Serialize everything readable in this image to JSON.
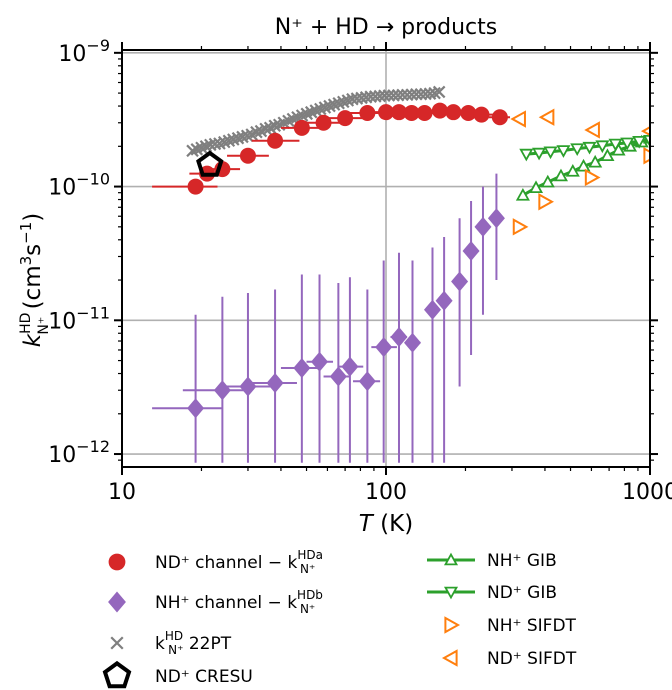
{
  "chart_data": {
    "type": "scatter",
    "title": "N⁺ + HD → products",
    "xlabel": "T (K)",
    "ylabel": "k_N⁺^HD (cm³s⁻¹)",
    "xscale": "log",
    "yscale": "log",
    "xlim": [
      10,
      1000
    ],
    "ylim": [
      8e-13,
      1.05e-09
    ],
    "x_ticks": [
      {
        "value": 10,
        "label": "10"
      },
      {
        "value": 100,
        "label": "100"
      },
      {
        "value": 1000,
        "label": "1000"
      }
    ],
    "y_ticks": [
      {
        "value": 1e-12,
        "mantissa": "10",
        "exponent": "−12"
      },
      {
        "value": 1e-11,
        "mantissa": "10",
        "exponent": "−11"
      },
      {
        "value": 1e-10,
        "mantissa": "10",
        "exponent": "−10"
      },
      {
        "value": 1e-09,
        "mantissa": "10",
        "exponent": "−9"
      }
    ],
    "grid": true,
    "legend_position": "below",
    "series": [
      {
        "id": "nd_channel",
        "name": "ND⁺ channel − k_N⁺^HDa",
        "legend_main": "ND⁺ channel  −  k",
        "legend_sup": "HDa",
        "legend_sub": "N⁺",
        "marker": "circle",
        "color": "#d62728",
        "x": [
          19,
          21,
          24,
          30,
          38,
          48,
          58,
          70,
          85,
          100,
          112,
          125,
          140,
          160,
          180,
          205,
          230,
          270
        ],
        "y": [
          1e-10,
          1.25e-10,
          1.35e-10,
          1.7e-10,
          2.2e-10,
          2.75e-10,
          3e-10,
          3.25e-10,
          3.55e-10,
          3.6e-10,
          3.6e-10,
          3.55e-10,
          3.55e-10,
          3.7e-10,
          3.6e-10,
          3.55e-10,
          3.45e-10,
          3.3e-10
        ],
        "x_err_low": [
          13,
          18,
          20,
          25,
          31,
          40,
          49,
          60,
          73,
          88,
          100,
          112,
          126,
          143,
          162,
          185,
          210,
          245
        ],
        "x_err_high": [
          23,
          25,
          28,
          36,
          47,
          57,
          68,
          82,
          98,
          114,
          125,
          140,
          157,
          178,
          200,
          225,
          255,
          295
        ]
      },
      {
        "id": "nh_channel",
        "name": "NH⁺ channel − k_N⁺^HDb",
        "legend_main": "NH⁺ channel  −  k",
        "legend_sup": "HDb",
        "legend_sub": "N⁺",
        "marker": "diamond",
        "color": "#9467bd",
        "x": [
          19,
          24,
          30,
          38,
          48,
          56,
          66,
          73,
          85,
          98,
          112,
          126,
          150,
          166,
          190,
          210,
          233,
          262
        ],
        "y": [
          2.2e-12,
          3e-12,
          3.2e-12,
          3.4e-12,
          4.4e-12,
          4.9e-12,
          3.8e-12,
          4.5e-12,
          3.5e-12,
          6.3e-12,
          7.5e-12,
          6.8e-12,
          1.2e-11,
          1.4e-11,
          1.95e-11,
          3.3e-11,
          5e-11,
          5.8e-11
        ],
        "x_err_low": [
          13,
          17,
          24,
          30,
          40,
          50,
          58,
          66,
          75,
          88,
          104,
          118,
          null,
          null,
          null,
          null,
          null,
          null
        ],
        "x_err_high": [
          24,
          30,
          37,
          46,
          56,
          63,
          73,
          82,
          95,
          110,
          120,
          135,
          null,
          null,
          null,
          null,
          null,
          null
        ],
        "y_err_low": [
          8.6e-13,
          8.6e-13,
          8.6e-13,
          8.6e-13,
          8.6e-13,
          8.6e-13,
          8.6e-13,
          8.6e-13,
          8.6e-13,
          8.6e-13,
          8.6e-13,
          8.6e-13,
          8.6e-13,
          8.6e-13,
          3.2e-12,
          5.5e-12,
          1.1e-11,
          2e-11
        ],
        "y_err_high": [
          1.1e-11,
          1.5e-11,
          1.6e-11,
          1.7e-11,
          2.2e-11,
          2.2e-11,
          1.9e-11,
          2.1e-11,
          1.7e-11,
          2.8e-11,
          3.2e-11,
          2.8e-11,
          3.5e-11,
          4.2e-11,
          5.8e-11,
          7.8e-11,
          1e-10,
          1.25e-10
        ]
      },
      {
        "id": "pt22",
        "name": "k_N⁺^HD 22PT",
        "legend_main": "k",
        "legend_sup": "HD",
        "legend_sub": "N⁺",
        "legend_after": " 22PT",
        "marker": "x",
        "color": "#7f7f7f",
        "x": [
          18.5,
          19.2,
          20,
          20.8,
          21.6,
          22.5,
          23.4,
          24.4,
          25.4,
          26.4,
          27.5,
          28.6,
          29.8,
          31,
          32.3,
          33.6,
          35,
          36.4,
          37.9,
          39.4,
          41,
          42.7,
          44.4,
          46.2,
          48.1,
          50.1,
          52.1,
          54.2,
          56.4,
          58.7,
          61.1,
          63.6,
          66.2,
          68.9,
          71.7,
          74.6,
          77.6,
          80.8,
          84.1,
          87.5,
          91.1,
          94.8,
          98.6,
          102.6,
          106.8,
          111.1,
          115.6,
          120.3,
          125.2,
          130.3,
          135.6,
          141.1,
          146.8,
          152.8,
          159
        ],
        "y": [
          1.85e-10,
          1.9e-10,
          1.95e-10,
          2e-10,
          2.05e-10,
          2.08e-10,
          2.1e-10,
          2.15e-10,
          2.2e-10,
          2.25e-10,
          2.3e-10,
          2.35e-10,
          2.4e-10,
          2.45e-10,
          2.55e-10,
          2.6e-10,
          2.7e-10,
          2.75e-10,
          2.85e-10,
          2.9e-10,
          3e-10,
          3.1e-10,
          3.2e-10,
          3.3e-10,
          3.4e-10,
          3.5e-10,
          3.6e-10,
          3.7e-10,
          3.8e-10,
          3.9e-10,
          4e-10,
          4.1e-10,
          4.2e-10,
          4.3e-10,
          4.4e-10,
          4.5e-10,
          4.55e-10,
          4.6e-10,
          4.65e-10,
          4.7e-10,
          4.72e-10,
          4.75e-10,
          4.78e-10,
          4.8e-10,
          4.8e-10,
          4.82e-10,
          4.85e-10,
          4.85e-10,
          4.87e-10,
          4.9e-10,
          4.9e-10,
          4.92e-10,
          4.95e-10,
          5e-10,
          5.1e-10
        ]
      },
      {
        "id": "cresu",
        "name": "ND⁺ CRESU",
        "legend_main": "ND⁺ CRESU",
        "marker": "pentagon",
        "color": "#000000",
        "x": [
          21.5
        ],
        "y": [
          1.45e-10
        ]
      },
      {
        "id": "nh_gib",
        "name": "NH⁺ GIB",
        "legend_main": "NH⁺ GIB",
        "marker": "triangle-up",
        "color": "#2ca02c",
        "x": [
          330,
          370,
          410,
          460,
          510,
          560,
          620,
          690,
          760,
          840,
          930,
          1000
        ],
        "y": [
          8.6e-11,
          9.8e-11,
          1.08e-10,
          1.2e-10,
          1.3e-10,
          1.42e-10,
          1.52e-10,
          1.7e-10,
          1.87e-10,
          2e-10,
          2.15e-10,
          2.3e-10
        ]
      },
      {
        "id": "nd_gib",
        "name": "ND⁺ GIB",
        "legend_main": "ND⁺ GIB",
        "marker": "triangle-down",
        "color": "#2ca02c",
        "x": [
          340,
          380,
          420,
          470,
          530,
          590,
          660,
          740,
          820,
          910,
          1000
        ],
        "y": [
          1.75e-10,
          1.78e-10,
          1.82e-10,
          1.86e-10,
          1.92e-10,
          1.97e-10,
          2.02e-10,
          2.08e-10,
          2.12e-10,
          2.18e-10,
          2.22e-10
        ]
      },
      {
        "id": "nh_sifdt",
        "name": "NH⁺ SIFDT",
        "legend_main": "NH⁺ SIFDT",
        "marker": "triangle-right",
        "color": "#ff7f0e",
        "x": [
          320,
          400,
          600,
          1000
        ],
        "y": [
          5e-11,
          7.7e-11,
          1.17e-10,
          1.7e-10
        ]
      },
      {
        "id": "nd_sifdt",
        "name": "ND⁺ SIFDT",
        "legend_main": "ND⁺ SIFDT",
        "marker": "triangle-left",
        "color": "#ff7f0e",
        "x": [
          320,
          410,
          610,
          1000
        ],
        "y": [
          3.2e-10,
          3.3e-10,
          2.65e-10,
          2.6e-10
        ]
      }
    ]
  }
}
